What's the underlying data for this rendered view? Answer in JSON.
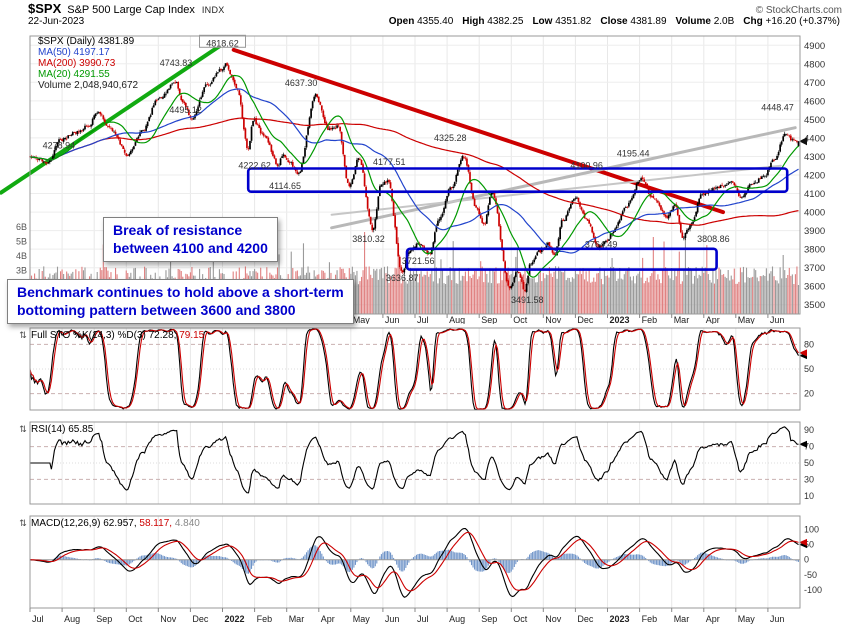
{
  "header": {
    "symbol": "$SPX",
    "index_name": "S&P 500 Large Cap Index",
    "exchange": "INDX",
    "credit": "© StockCharts.com",
    "date": "22-Jun-2023",
    "quote_fields": [
      {
        "label": "Open",
        "value": "4355.40"
      },
      {
        "label": "High",
        "value": "4382.25"
      },
      {
        "label": "Low",
        "value": "4351.82"
      },
      {
        "label": "Close",
        "value": "4381.89"
      },
      {
        "label": "Volume",
        "value": "2.0B"
      },
      {
        "label": "Chg",
        "value": "+16.20 (+0.37%)"
      }
    ]
  },
  "annotations": {
    "break_resistance": "Break of resistance\nbetween 4100 and 4200",
    "benchmark_hold": "Benchmark continues to hold above a short-term\nbottoming pattern between 3600 and 3800"
  },
  "colors": {
    "candle_up": "#000000",
    "candle_down": "#cc0000",
    "ma50": "#2244cc",
    "ma200": "#cc0000",
    "ma20": "#009900",
    "box_blue": "#0000cc",
    "hist_blue": "#6e93c8",
    "grid": "#e8e8e8",
    "axis_text": "#333333"
  },
  "chart_data": {
    "type": "candlestick",
    "title": "$SPX daily candlesticks with MA(20/50/200), volume, Full Stochastic, RSI and MACD panels",
    "x_axis_months": [
      "Jul",
      "Aug",
      "Sep",
      "Oct",
      "Nov",
      "Dec",
      "2022",
      "Feb",
      "Mar",
      "Apr",
      "May",
      "Jun",
      "Jul",
      "Aug",
      "Sep",
      "Oct",
      "Nov",
      "Dec",
      "2023",
      "Feb",
      "Mar",
      "Apr",
      "May",
      "Jun"
    ],
    "price_axis_ticks": [
      4900,
      4800,
      4700,
      4600,
      4500,
      4400,
      4300,
      4200,
      4100,
      4000,
      3900,
      3800,
      3700,
      3600,
      3500
    ],
    "price_range": [
      3450,
      4950
    ],
    "volume_axis_labels": [
      "6B",
      "5B",
      "4B",
      "3B"
    ],
    "legend": [
      {
        "label": "$SPX (Daily) 4381.89",
        "color": "#000000"
      },
      {
        "label": "MA(50) 4197.17",
        "color": "#2244cc"
      },
      {
        "label": "MA(200) 3990.73",
        "color": "#cc0000"
      },
      {
        "label": "MA(20) 4291.55",
        "color": "#009900"
      },
      {
        "label": "Volume 2,048,940,672",
        "color": "#222222"
      }
    ],
    "close_anchors": [
      [
        0,
        4300
      ],
      [
        0.55,
        4266
      ],
      [
        0.95,
        4390
      ],
      [
        1.5,
        4432
      ],
      [
        1.85,
        4470
      ],
      [
        2.1,
        4537
      ],
      [
        2.55,
        4443
      ],
      [
        3.05,
        4307
      ],
      [
        3.5,
        4438
      ],
      [
        4,
        4610
      ],
      [
        4.55,
        4701
      ],
      [
        4.75,
        4594
      ],
      [
        5.05,
        4507
      ],
      [
        5.5,
        4682
      ],
      [
        5.95,
        4766
      ],
      [
        6.1,
        4796
      ],
      [
        6.45,
        4670
      ],
      [
        6.8,
        4340
      ],
      [
        6.95,
        4500
      ],
      [
        7.3,
        4410
      ],
      [
        7.75,
        4250
      ],
      [
        7.85,
        4310
      ],
      [
        8.1,
        4270
      ],
      [
        8.35,
        4200
      ],
      [
        8.9,
        4630
      ],
      [
        9.3,
        4450
      ],
      [
        9.6,
        4460
      ],
      [
        9.95,
        4135
      ],
      [
        10.25,
        4290
      ],
      [
        10.68,
        3910
      ],
      [
        10.95,
        4150
      ],
      [
        11.15,
        4170
      ],
      [
        11.6,
        3670
      ],
      [
        11.8,
        3790
      ],
      [
        12.1,
        3830
      ],
      [
        12.45,
        3780
      ],
      [
        12.75,
        3960
      ],
      [
        13.1,
        4125
      ],
      [
        13.52,
        4300
      ],
      [
        13.9,
        4030
      ],
      [
        14.15,
        3930
      ],
      [
        14.4,
        4105
      ],
      [
        14.95,
        3590
      ],
      [
        15.2,
        3680
      ],
      [
        15.42,
        3580
      ],
      [
        15.6,
        3720
      ],
      [
        15.9,
        3790
      ],
      [
        16.15,
        3830
      ],
      [
        16.35,
        3760
      ],
      [
        16.6,
        3955
      ],
      [
        17,
        4078
      ],
      [
        17.35,
        3960
      ],
      [
        17.72,
        3810
      ],
      [
        17.95,
        3840
      ],
      [
        18.2,
        3900
      ],
      [
        18.55,
        4020
      ],
      [
        19.05,
        4175
      ],
      [
        19.4,
        4080
      ],
      [
        19.85,
        3975
      ],
      [
        20.1,
        4040
      ],
      [
        20.35,
        3865
      ],
      [
        20.6,
        3930
      ],
      [
        20.95,
        4100
      ],
      [
        21.4,
        4135
      ],
      [
        21.9,
        4160
      ],
      [
        22.15,
        4080
      ],
      [
        22.5,
        4150
      ],
      [
        22.9,
        4195
      ],
      [
        23.2,
        4290
      ],
      [
        23.55,
        4420
      ],
      [
        23.75,
        4390
      ],
      [
        24,
        4382
      ]
    ],
    "price_labels": [
      {
        "text": "4818.62",
        "m": 6.0,
        "p": 4905,
        "boxed": true
      },
      {
        "text": "4743.83",
        "m": 4.55,
        "p": 4800
      },
      {
        "text": "4637.30",
        "m": 8.45,
        "p": 4690
      },
      {
        "text": "4495.12",
        "m": 4.85,
        "p": 4545
      },
      {
        "text": "4278.94",
        "m": 0.9,
        "p": 4355
      },
      {
        "text": "4325.28",
        "m": 13.1,
        "p": 4395
      },
      {
        "text": "4177.51",
        "m": 11.2,
        "p": 4265
      },
      {
        "text": "4222.62",
        "m": 7.0,
        "p": 4245
      },
      {
        "text": "4114.65",
        "m": 7.95,
        "p": 4135
      },
      {
        "text": "4100.96",
        "m": 17.35,
        "p": 4245
      },
      {
        "text": "4195.44",
        "m": 18.8,
        "p": 4310
      },
      {
        "text": "4448.47",
        "m": 23.3,
        "p": 4560
      },
      {
        "text": "3810.32",
        "m": 10.55,
        "p": 3850
      },
      {
        "text": "3721.56",
        "m": 12.1,
        "p": 3730
      },
      {
        "text": "3764.49",
        "m": 17.8,
        "p": 3820
      },
      {
        "text": "3808.86",
        "m": 21.3,
        "p": 3850
      },
      {
        "text": "3636.87",
        "m": 11.6,
        "p": 3640
      },
      {
        "text": "3491.58",
        "m": 15.5,
        "p": 3520
      }
    ],
    "resistance_box": {
      "m0": 6.8,
      "m1": 23.6,
      "p0": 4110,
      "p1": 4235
    },
    "bottoming_box": {
      "m0": 11.75,
      "m1": 21.4,
      "p0": 3690,
      "p1": 3802
    },
    "trendlines": [
      {
        "m0": -0.9,
        "p0": 4105,
        "m1": 6.25,
        "p1": 4935,
        "color": "#11aa11",
        "w": 4
      },
      {
        "m0": 6.35,
        "p0": 4875,
        "m1": 21.6,
        "p1": 4000,
        "color": "#cc0000",
        "w": 4
      },
      {
        "m0": 9.4,
        "p0": 3915,
        "m1": 23.85,
        "p1": 4455,
        "color": "#b8b8b8",
        "w": 3
      },
      {
        "m0": 9.4,
        "p0": 3985,
        "m1": 23.4,
        "p1": 4250,
        "color": "#c6c6c6",
        "w": 2
      }
    ],
    "panels": {
      "sto": {
        "legend_parts": [
          {
            "text": "Full STO %K(14,3) %D(3) ",
            "color": "#000000"
          },
          {
            "text": "72.28, ",
            "color": "#000000"
          },
          {
            "text": "79.15",
            "color": "#cc0000"
          }
        ],
        "ticks": [
          80,
          50,
          20
        ],
        "range": [
          0,
          100
        ]
      },
      "rsi": {
        "legend_parts": [
          {
            "text": "RSI(14) ",
            "color": "#000000"
          },
          {
            "text": "65.85",
            "color": "#000000"
          }
        ],
        "ticks": [
          90,
          70,
          50,
          30,
          10
        ],
        "range": [
          0,
          100
        ]
      },
      "macd": {
        "legend_parts": [
          {
            "text": "MACD(12,26,9) ",
            "color": "#000000"
          },
          {
            "text": "62.957, ",
            "color": "#000000"
          },
          {
            "text": "58.117, ",
            "color": "#cc0000"
          },
          {
            "text": "4.840",
            "color": "#888888"
          }
        ],
        "ticks": [
          100,
          50,
          0,
          -50,
          -100
        ],
        "range": [
          -160,
          145
        ]
      }
    }
  }
}
